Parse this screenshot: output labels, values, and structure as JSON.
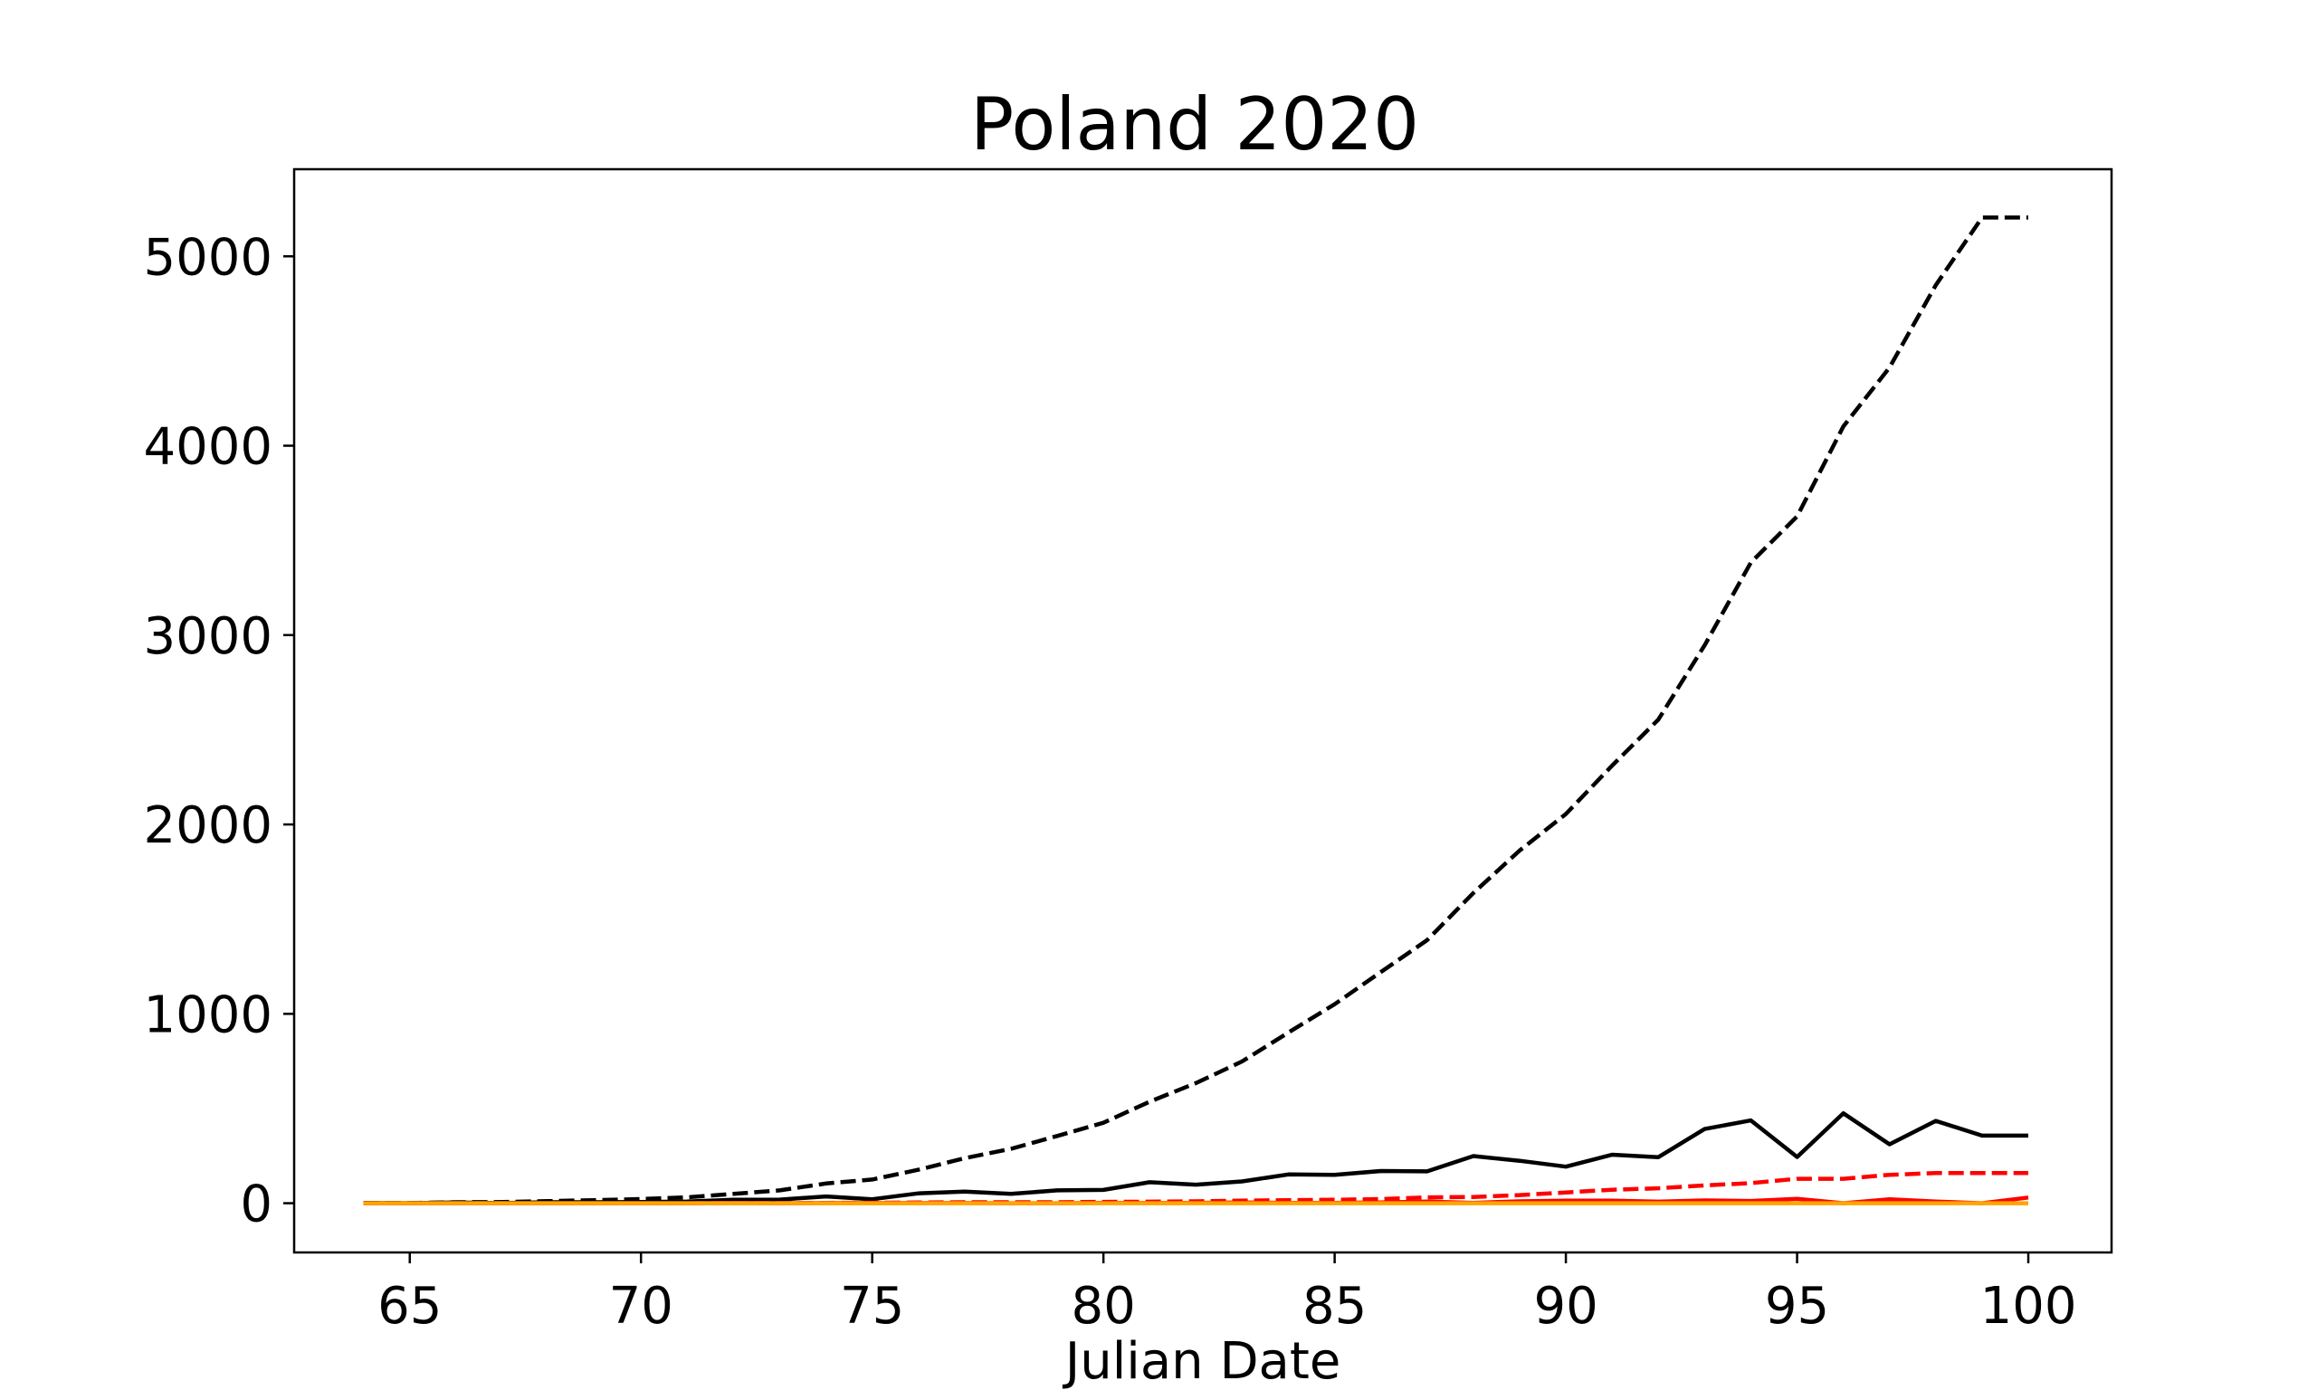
{
  "chart_data": {
    "type": "line",
    "title": "Poland 2020",
    "xlabel": "Julian Date",
    "ylabel": "",
    "xlim": [
      62.5,
      101.8
    ],
    "ylim": [
      -260,
      5460
    ],
    "xticks": [
      65,
      70,
      75,
      80,
      85,
      90,
      95,
      100
    ],
    "yticks": [
      0,
      1000,
      2000,
      3000,
      4000,
      5000
    ],
    "x": [
      64,
      65,
      66,
      67,
      68,
      69,
      70,
      71,
      72,
      73,
      74,
      75,
      76,
      77,
      78,
      79,
      80,
      81,
      82,
      83,
      84,
      85,
      86,
      87,
      88,
      89,
      90,
      91,
      92,
      93,
      94,
      95,
      96,
      97,
      98,
      99,
      100
    ],
    "series": [
      {
        "color": "#000000",
        "dash": "dashed",
        "values": [
          1,
          1,
          5,
          6,
          11,
          16,
          22,
          31,
          49,
          68,
          104,
          125,
          177,
          238,
          287,
          355,
          425,
          536,
          634,
          749,
          901,
          1051,
          1221,
          1389,
          1638,
          1862,
          2055,
          2311,
          2554,
          2946,
          3383,
          3627,
          4102,
          4413,
          4848,
          5205,
          5205
        ]
      },
      {
        "color": "#000000",
        "dash": "solid",
        "values": [
          1,
          0,
          4,
          1,
          5,
          5,
          6,
          9,
          18,
          19,
          36,
          21,
          52,
          61,
          49,
          68,
          70,
          111,
          98,
          115,
          152,
          150,
          170,
          168,
          249,
          224,
          193,
          256,
          243,
          392,
          437,
          244,
          475,
          311,
          435,
          357,
          357
        ]
      },
      {
        "color": "#ff0000",
        "dash": "dashed",
        "values": [
          0,
          0,
          0,
          0,
          0,
          0,
          0,
          0,
          1,
          1,
          2,
          3,
          4,
          5,
          5,
          5,
          7,
          8,
          10,
          14,
          16,
          18,
          22,
          31,
          33,
          43,
          57,
          71,
          79,
          94,
          106,
          129,
          129,
          150,
          159,
          159,
          159
        ]
      },
      {
        "color": "#ff0000",
        "dash": "solid",
        "values": [
          0,
          0,
          0,
          0,
          0,
          0,
          0,
          0,
          1,
          0,
          1,
          1,
          1,
          1,
          0,
          0,
          2,
          1,
          2,
          4,
          2,
          2,
          4,
          9,
          2,
          10,
          14,
          14,
          8,
          15,
          12,
          23,
          0,
          21,
          9,
          0,
          30
        ]
      },
      {
        "color": "#ffa500",
        "dash": "solid",
        "values": [
          0,
          0,
          0,
          0,
          0,
          0,
          0,
          0,
          0,
          0,
          0,
          0,
          0,
          0,
          0,
          0,
          0,
          0,
          0,
          0,
          0,
          0,
          0,
          0,
          0,
          0,
          0,
          0,
          0,
          0,
          0,
          0,
          0,
          0,
          0,
          0,
          0
        ]
      }
    ],
    "grid": false,
    "legend": "none"
  }
}
